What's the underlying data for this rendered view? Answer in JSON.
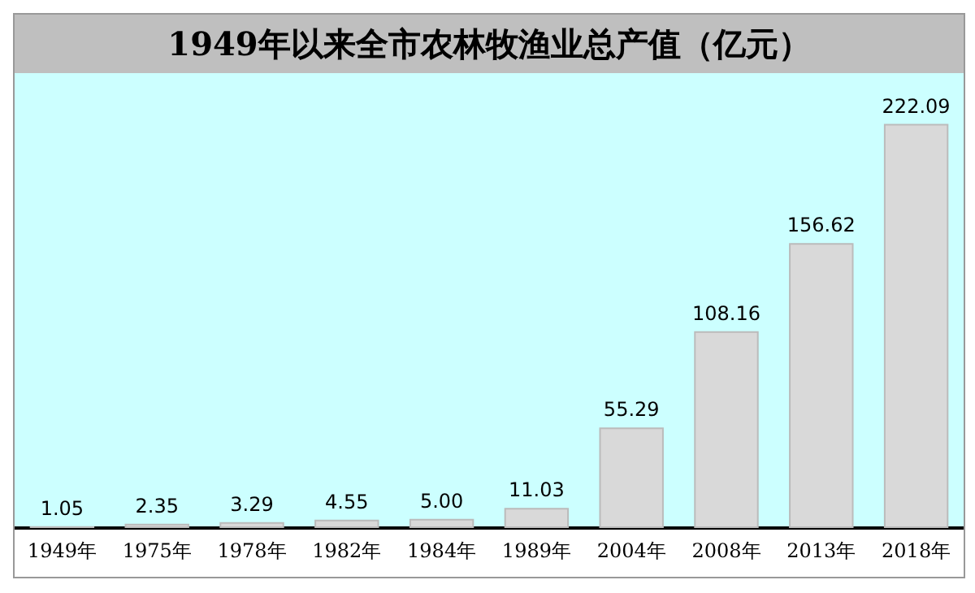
{
  "chart_data": {
    "type": "bar",
    "title": "1949年以来全市农林牧渔业总产值（亿元）",
    "categories": [
      "1949年",
      "1975年",
      "1978年",
      "1982年",
      "1984年",
      "1989年",
      "2004年",
      "2008年",
      "2013年",
      "2018年"
    ],
    "values": [
      1.05,
      2.35,
      3.29,
      4.55,
      5.0,
      11.03,
      55.29,
      108.16,
      156.62,
      222.09
    ],
    "value_labels": [
      "1.05",
      "2.35",
      "3.29",
      "4.55",
      "5.00",
      "11.03",
      "55.29",
      "108.16",
      "156.62",
      "222.09"
    ],
    "color": "#d9d9d9"
  }
}
